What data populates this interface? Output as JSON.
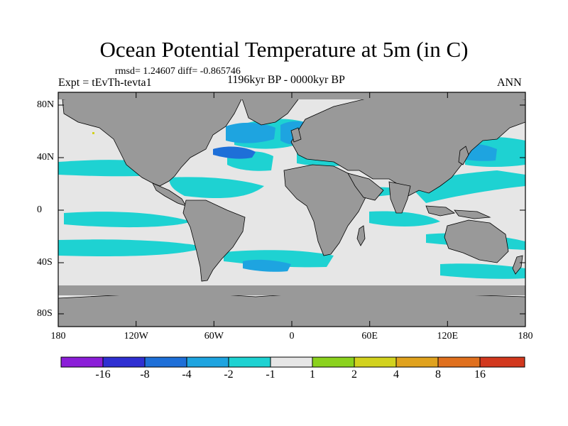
{
  "title": "Ocean Potential Temperature at 5m (in C)",
  "stats": "rmsd= 1.24607 diff= -0.865746",
  "experiment": "Expt = tEvTh-tevta1",
  "period": "1196kyr BP - 0000kyr BP",
  "season": "ANN",
  "axes": {
    "y_ticks": [
      "80N",
      "40N",
      "0",
      "40S",
      "80S"
    ],
    "x_ticks": [
      "180",
      "120W",
      "60W",
      "0",
      "60E",
      "120E",
      "180"
    ]
  },
  "colorbar": {
    "labels": [
      "-16",
      "-8",
      "-4",
      "-2",
      "-1",
      "1",
      "2",
      "4",
      "8",
      "16"
    ],
    "colors": [
      "#8b1ed8",
      "#2f2fd2",
      "#1e6fd8",
      "#1ea4e0",
      "#1ed2d2",
      "#e6e6e6",
      "#8bd21e",
      "#d2d21e",
      "#e0a21e",
      "#e0701e",
      "#d2381e"
    ]
  },
  "map_colors": {
    "land": "#999999",
    "neutral": "#e6e6e6",
    "cool": "#1ed2d2",
    "cooler": "#1ea4e0",
    "coolest": "#1e6fd8"
  }
}
